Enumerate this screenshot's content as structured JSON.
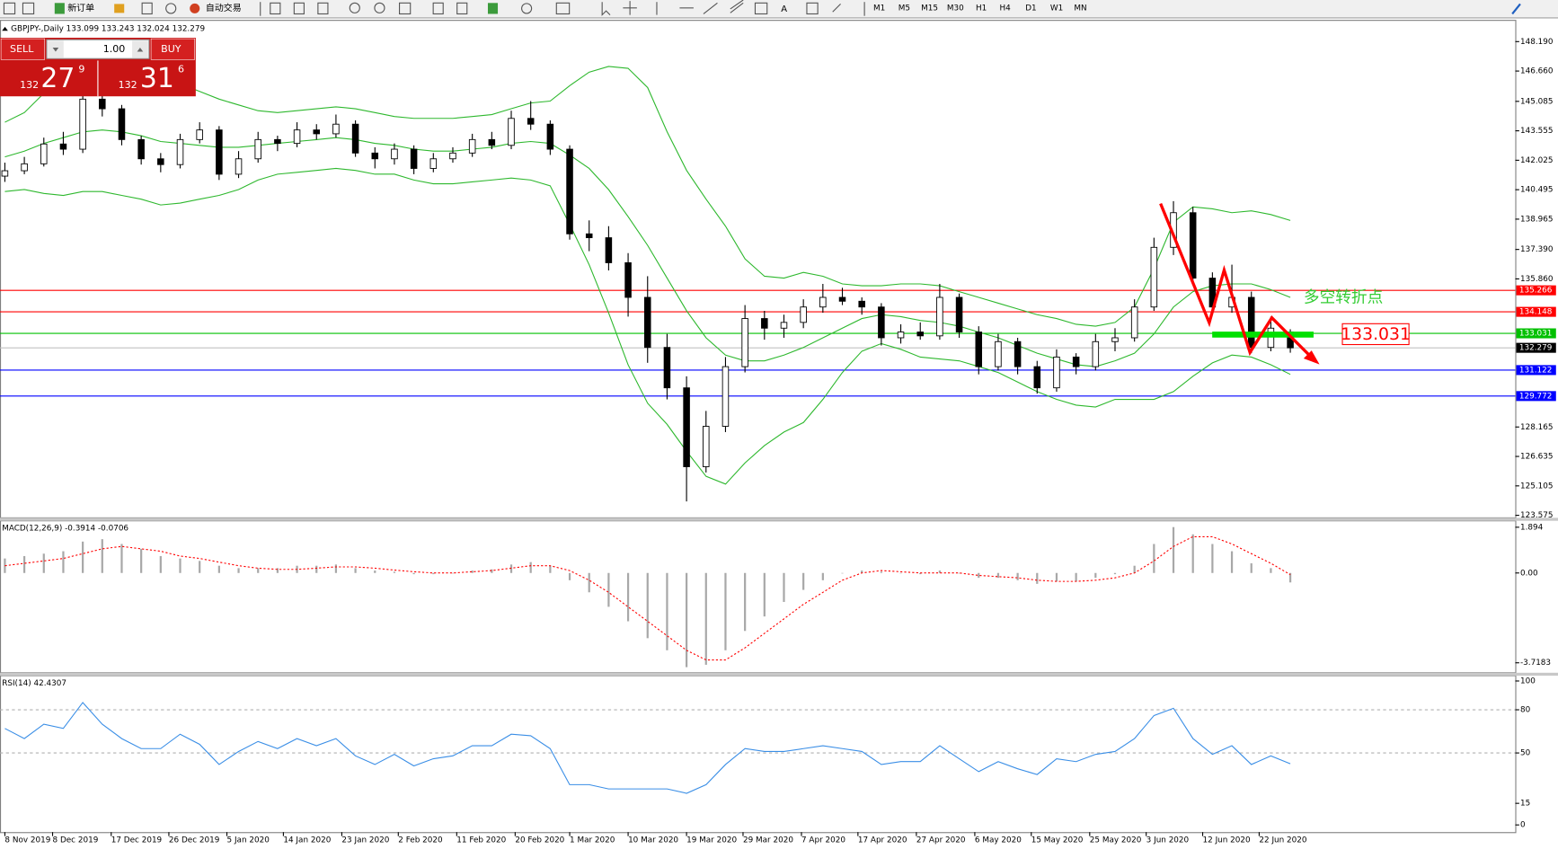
{
  "toolbar": {
    "buttons": [
      "新订单",
      "自动交易"
    ],
    "timeframes": [
      "M1",
      "M5",
      "M15",
      "M30",
      "H1",
      "H4",
      "D1",
      "W1",
      "MN"
    ]
  },
  "trade_panel": {
    "sell": "SELL",
    "buy": "BUY",
    "lot": "1.00",
    "sell_big": "132",
    "sell_pips": "27",
    "sell_point": "9",
    "buy_big": "132",
    "buy_pips": "31",
    "buy_point": "6"
  },
  "chart_data": [
    {
      "type": "candlestick",
      "title": "GBPJPY-,Daily 133.099 133.243 132.024 132.279",
      "ohlc": [
        [
          141.2,
          141.9,
          140.9,
          141.48
        ],
        [
          141.48,
          142.2,
          141.3,
          141.84
        ],
        [
          141.84,
          143.2,
          141.7,
          142.87
        ],
        [
          142.87,
          143.5,
          142.3,
          142.6
        ],
        [
          142.6,
          147.0,
          142.4,
          145.2
        ],
        [
          145.2,
          146.0,
          144.3,
          144.7
        ],
        [
          144.7,
          144.9,
          142.8,
          143.1
        ],
        [
          143.1,
          143.3,
          141.8,
          142.1
        ],
        [
          142.1,
          142.4,
          141.4,
          141.8
        ],
        [
          141.8,
          143.4,
          141.6,
          143.1
        ],
        [
          143.1,
          144.0,
          142.9,
          143.6
        ],
        [
          143.6,
          143.8,
          141.0,
          141.3
        ],
        [
          141.3,
          142.5,
          141.1,
          142.1
        ],
        [
          142.1,
          143.5,
          141.9,
          143.1
        ],
        [
          143.1,
          143.3,
          142.5,
          142.9
        ],
        [
          142.9,
          144.0,
          142.7,
          143.6
        ],
        [
          143.6,
          143.9,
          143.1,
          143.4
        ],
        [
          143.4,
          144.4,
          143.2,
          143.9
        ],
        [
          143.9,
          144.1,
          142.2,
          142.4
        ],
        [
          142.4,
          142.7,
          141.6,
          142.1
        ],
        [
          142.1,
          142.9,
          141.8,
          142.6
        ],
        [
          142.6,
          142.8,
          141.3,
          141.6
        ],
        [
          141.6,
          142.4,
          141.4,
          142.1
        ],
        [
          142.1,
          142.7,
          141.9,
          142.4
        ],
        [
          142.4,
          143.4,
          142.2,
          143.1
        ],
        [
          143.1,
          143.5,
          142.6,
          142.8
        ],
        [
          142.8,
          144.6,
          142.6,
          144.2
        ],
        [
          144.2,
          145.1,
          143.6,
          143.9
        ],
        [
          143.9,
          144.1,
          142.3,
          142.6
        ],
        [
          142.6,
          142.8,
          137.9,
          138.2
        ],
        [
          138.2,
          138.9,
          137.3,
          138.0
        ],
        [
          138.0,
          138.6,
          136.3,
          136.7
        ],
        [
          136.7,
          137.2,
          133.9,
          134.9
        ],
        [
          134.9,
          136.0,
          131.5,
          132.3
        ],
        [
          132.3,
          133.0,
          129.6,
          130.2
        ],
        [
          130.2,
          130.8,
          124.3,
          126.1
        ],
        [
          126.1,
          129.0,
          125.8,
          128.2
        ],
        [
          128.2,
          131.8,
          127.9,
          131.3
        ],
        [
          131.3,
          134.5,
          131.0,
          133.8
        ],
        [
          133.8,
          134.2,
          132.7,
          133.3
        ],
        [
          133.3,
          134.0,
          132.8,
          133.6
        ],
        [
          133.6,
          134.8,
          133.3,
          134.4
        ],
        [
          134.4,
          135.6,
          134.1,
          134.9
        ],
        [
          134.9,
          135.4,
          134.5,
          134.7
        ],
        [
          134.7,
          134.9,
          134.0,
          134.4
        ],
        [
          134.4,
          134.6,
          132.4,
          132.8
        ],
        [
          132.8,
          133.5,
          132.5,
          133.1
        ],
        [
          133.1,
          133.6,
          132.7,
          132.9
        ],
        [
          132.9,
          135.6,
          132.7,
          134.9
        ],
        [
          134.9,
          135.1,
          132.8,
          133.1
        ],
        [
          133.1,
          133.4,
          130.9,
          131.3
        ],
        [
          131.3,
          133.0,
          131.1,
          132.6
        ],
        [
          132.6,
          132.8,
          130.9,
          131.3
        ],
        [
          131.3,
          131.6,
          129.9,
          130.2
        ],
        [
          130.2,
          132.2,
          130.0,
          131.8
        ],
        [
          131.8,
          132.0,
          130.9,
          131.3
        ],
        [
          131.3,
          133.0,
          131.1,
          132.6
        ],
        [
          132.6,
          133.3,
          132.1,
          132.8
        ],
        [
          132.8,
          134.8,
          132.6,
          134.4
        ],
        [
          134.4,
          138.0,
          134.2,
          137.5
        ],
        [
          137.5,
          139.9,
          137.1,
          139.3
        ],
        [
          139.3,
          139.6,
          135.6,
          135.9
        ],
        [
          135.9,
          136.2,
          134.0,
          134.4
        ],
        [
          134.4,
          136.6,
          134.1,
          134.9
        ],
        [
          134.9,
          135.2,
          132.0,
          132.3
        ],
        [
          132.3,
          133.9,
          132.1,
          133.3
        ],
        [
          133.099,
          133.243,
          132.024,
          132.279
        ]
      ],
      "upper": [
        144.0,
        144.5,
        145.5,
        146.2,
        146.6,
        146.8,
        146.8,
        146.6,
        146.3,
        146.0,
        145.6,
        145.2,
        144.9,
        144.6,
        144.5,
        144.6,
        144.7,
        144.8,
        144.7,
        144.5,
        144.3,
        144.2,
        144.2,
        144.2,
        144.3,
        144.4,
        144.7,
        145.0,
        145.1,
        145.9,
        146.6,
        146.9,
        146.8,
        145.8,
        143.5,
        141.5,
        140.0,
        138.6,
        136.9,
        136.0,
        135.9,
        136.2,
        136.0,
        135.6,
        135.5,
        135.5,
        135.6,
        135.6,
        135.5,
        135.2,
        134.9,
        134.6,
        134.3,
        134.0,
        133.8,
        133.5,
        133.4,
        133.6,
        134.4,
        136.4,
        138.8,
        139.6,
        139.5,
        139.3,
        139.4,
        139.2,
        138.9
      ],
      "middle": [
        142.2,
        142.5,
        142.9,
        143.2,
        143.5,
        143.6,
        143.5,
        143.3,
        143.0,
        142.9,
        142.8,
        142.7,
        142.7,
        142.8,
        142.9,
        143.0,
        143.1,
        143.2,
        143.1,
        142.9,
        142.8,
        142.6,
        142.5,
        142.5,
        142.6,
        142.7,
        142.9,
        143.0,
        142.9,
        142.3,
        141.6,
        140.5,
        139.1,
        137.6,
        135.9,
        134.2,
        132.8,
        131.9,
        131.6,
        131.6,
        131.9,
        132.3,
        132.8,
        133.3,
        133.8,
        134.0,
        133.9,
        133.7,
        133.6,
        133.4,
        133.1,
        132.8,
        132.4,
        132.0,
        131.7,
        131.4,
        131.3,
        131.6,
        132.0,
        133.0,
        134.4,
        135.2,
        135.5,
        135.6,
        135.6,
        135.3,
        134.9
      ],
      "lower": [
        140.4,
        140.5,
        140.3,
        140.2,
        140.4,
        140.4,
        140.2,
        140.0,
        139.7,
        139.8,
        140.0,
        140.2,
        140.5,
        141.0,
        141.3,
        141.4,
        141.5,
        141.6,
        141.5,
        141.3,
        141.3,
        141.0,
        140.8,
        140.8,
        140.9,
        141.0,
        141.1,
        141.0,
        140.7,
        138.7,
        136.6,
        134.1,
        131.4,
        129.4,
        128.3,
        126.9,
        125.6,
        125.2,
        126.3,
        127.2,
        127.9,
        128.4,
        129.6,
        131.0,
        132.1,
        132.5,
        132.2,
        131.8,
        131.7,
        131.6,
        131.3,
        131.0,
        130.5,
        130.0,
        129.6,
        129.3,
        129.2,
        129.6,
        129.6,
        129.6,
        130.0,
        130.8,
        131.5,
        131.9,
        131.8,
        131.4,
        130.9
      ],
      "band_color": "#2eb82e",
      "bull_color": "#ffffff",
      "bear_color": "#000000",
      "xlim": [
        -0.25,
        77.55
      ],
      "xticks": [
        {
          "value": 0,
          "label": "8 Nov 2019"
        },
        {
          "value": 2.45,
          "label": "8 Dec 2019"
        },
        {
          "value": 5.46,
          "label": "17 Dec 2019"
        },
        {
          "value": 8.42,
          "label": "26 Dec 2019"
        },
        {
          "value": 11.4,
          "label": "5 Jan 2020"
        },
        {
          "value": 14.3,
          "label": "14 Jan 2020"
        },
        {
          "value": 17.3,
          "label": "23 Jan 2020"
        },
        {
          "value": 20.2,
          "label": "2 Feb 2020"
        },
        {
          "value": 23.2,
          "label": "11 Feb 2020"
        },
        {
          "value": 26.2,
          "label": "20 Feb 2020"
        },
        {
          "value": 29.0,
          "label": "1 Mar 2020"
        },
        {
          "value": 32.0,
          "label": "10 Mar 2020"
        },
        {
          "value": 35.0,
          "label": "19 Mar 2020"
        },
        {
          "value": 37.9,
          "label": "29 Mar 2020"
        },
        {
          "value": 40.9,
          "label": "7 Apr 2020"
        },
        {
          "value": 43.8,
          "label": "17 Apr 2020"
        },
        {
          "value": 46.8,
          "label": "27 Apr 2020"
        },
        {
          "value": 49.8,
          "label": "6 May 2020"
        },
        {
          "value": 52.7,
          "label": "15 May 2020"
        },
        {
          "value": 55.7,
          "label": "25 May 2020"
        },
        {
          "value": 58.6,
          "label": "3 Jun 2020"
        },
        {
          "value": 61.5,
          "label": "12 Jun 2020"
        },
        {
          "value": 64.4,
          "label": "22 Jun 2020"
        }
      ],
      "ylim": [
        123.47,
        149.32
      ],
      "yticks": [
        {
          "value": 148.19,
          "label": "148.190"
        },
        {
          "value": 146.66,
          "label": "146.660"
        },
        145.085,
        143.555,
        142.025,
        140.495,
        138.965,
        {
          "value": 137.39,
          "label": "137.390"
        },
        {
          "value": 135.86,
          "label": "135.860"
        },
        128.165,
        126.635,
        125.105,
        123.575
      ],
      "levels": [
        {
          "value": 135.266,
          "color": "#ff0000",
          "tag_color": "#ff0000"
        },
        {
          "value": 134.148,
          "color": "#ff0000",
          "tag_color": "#ff0000"
        },
        {
          "value": 133.031,
          "color": "#00c000",
          "tag_color": "#00c000"
        },
        {
          "value": 132.279,
          "color": "#c0c0c0",
          "tag_color": "#000000"
        },
        {
          "value": 131.122,
          "color": "#0000ff",
          "tag_color": "#0000ff"
        },
        {
          "value": 129.772,
          "color": "#0000ff",
          "tag_color": "#0000ff"
        }
      ],
      "annotations": [
        "多空转折点",
        "133.031"
      ]
    },
    {
      "type": "macd",
      "title": "MACD(12,26,9) -0.3914 -0.0706",
      "histogram": [
        0.6,
        0.7,
        0.8,
        0.9,
        1.3,
        1.4,
        1.2,
        1.0,
        0.7,
        0.6,
        0.5,
        0.3,
        0.2,
        0.2,
        0.2,
        0.3,
        0.3,
        0.35,
        0.2,
        0.1,
        0.05,
        -0.05,
        -0.05,
        0.0,
        0.1,
        0.15,
        0.35,
        0.45,
        0.3,
        -0.3,
        -0.8,
        -1.4,
        -2.0,
        -2.7,
        -3.2,
        -3.9,
        -3.8,
        -3.2,
        -2.4,
        -1.8,
        -1.2,
        -0.7,
        -0.3,
        0.0,
        0.1,
        0.05,
        0.0,
        -0.05,
        0.1,
        0.0,
        -0.2,
        -0.2,
        -0.3,
        -0.45,
        -0.35,
        -0.35,
        -0.2,
        -0.05,
        0.3,
        1.2,
        1.9,
        1.6,
        1.2,
        0.9,
        0.4,
        0.2,
        -0.3914
      ],
      "signal": [
        0.3,
        0.4,
        0.5,
        0.6,
        0.8,
        1.0,
        1.1,
        1.0,
        0.9,
        0.7,
        0.6,
        0.45,
        0.3,
        0.2,
        0.15,
        0.15,
        0.2,
        0.25,
        0.25,
        0.2,
        0.12,
        0.05,
        0.0,
        0.0,
        0.05,
        0.1,
        0.2,
        0.3,
        0.3,
        0.1,
        -0.3,
        -0.8,
        -1.4,
        -2.0,
        -2.6,
        -3.2,
        -3.6,
        -3.6,
        -3.1,
        -2.5,
        -1.9,
        -1.3,
        -0.8,
        -0.3,
        0.0,
        0.1,
        0.05,
        0.0,
        0.0,
        0.0,
        -0.1,
        -0.15,
        -0.2,
        -0.3,
        -0.35,
        -0.35,
        -0.3,
        -0.2,
        0.0,
        0.5,
        1.1,
        1.5,
        1.5,
        1.2,
        0.8,
        0.4,
        -0.0706
      ],
      "hist_color": "#a8a8a8",
      "signal_color": "#ff0000",
      "ylim": [
        -4.11,
        2.18
      ],
      "yticks": [
        1.894,
        {
          "value": 0,
          "label": "0.00"
        },
        -3.7183
      ]
    },
    {
      "type": "line",
      "title": "RSI(14) 42.4307",
      "values": [
        67,
        60,
        70,
        67,
        85,
        70,
        60,
        53,
        53,
        63,
        56,
        42,
        51,
        58,
        53,
        60,
        55,
        60,
        48,
        42,
        49,
        41,
        46,
        48,
        55,
        55,
        63,
        62,
        53,
        28,
        28,
        25,
        25,
        25,
        25,
        22,
        28,
        42,
        53,
        51,
        51,
        53,
        55,
        53,
        51,
        42,
        44,
        44,
        55,
        46,
        37,
        44,
        39,
        35,
        46,
        44,
        49,
        51,
        60,
        76,
        81,
        60,
        49,
        55,
        42,
        48,
        42.4307
      ],
      "color": "#3a8ee6",
      "ylim": [
        -5,
        104
      ],
      "yticks": [
        100,
        80,
        50,
        15,
        0
      ],
      "levels": [
        80,
        50
      ]
    }
  ]
}
